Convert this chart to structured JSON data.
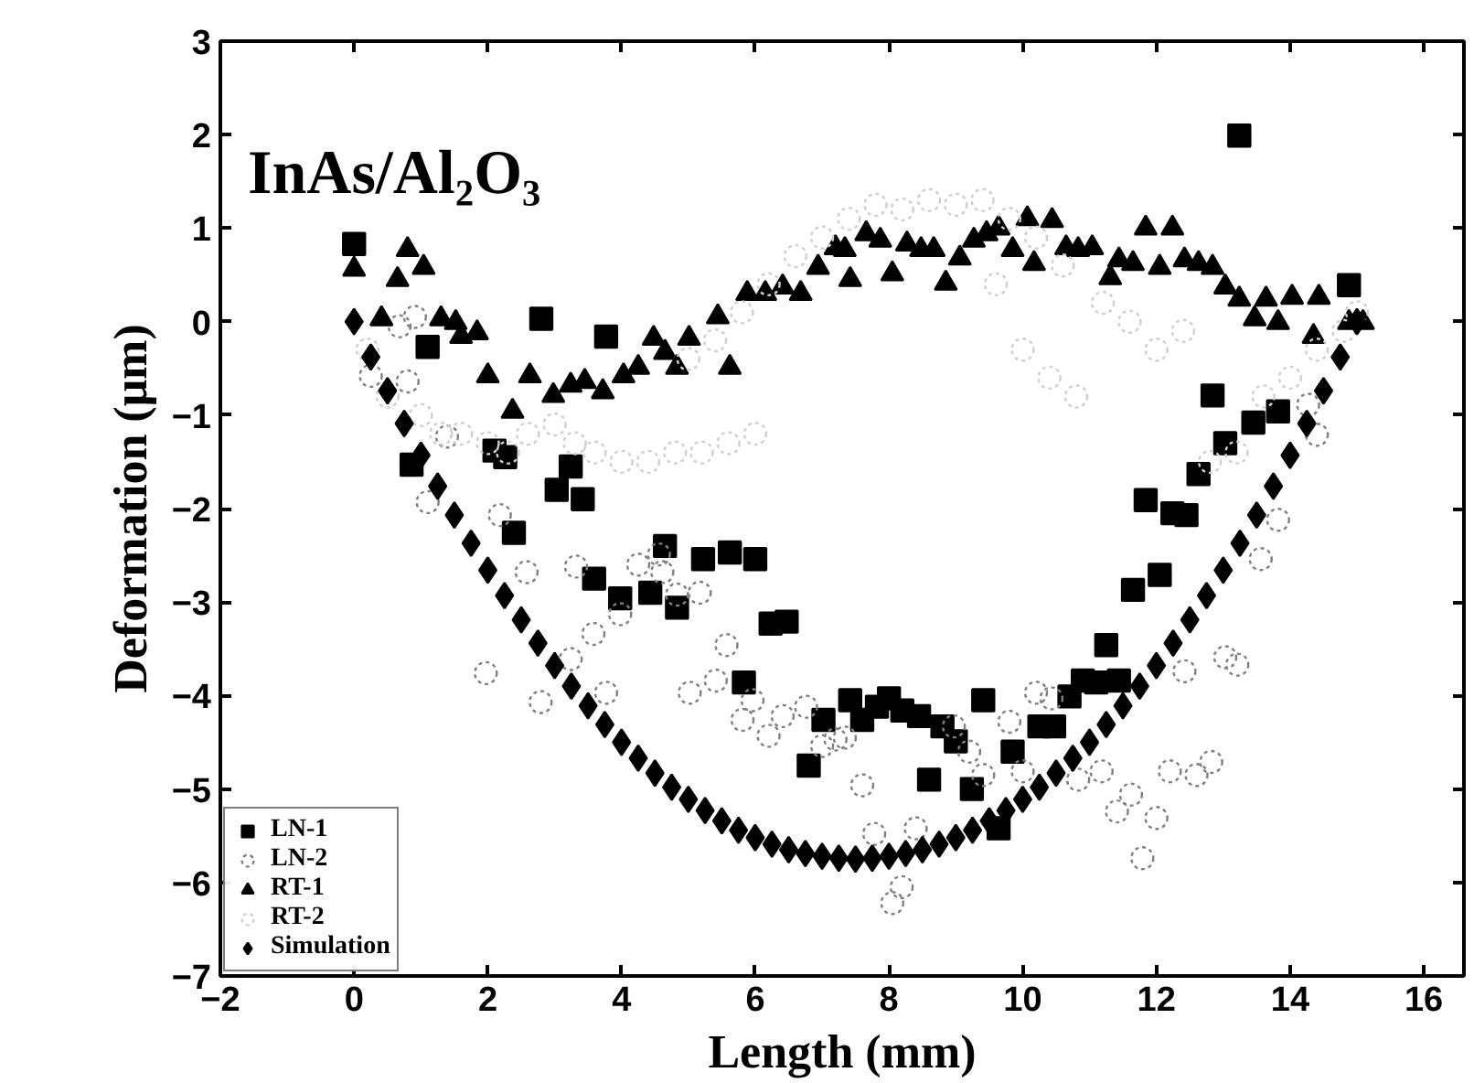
{
  "chart_data": {
    "type": "scatter",
    "xlabel": "Length (mm)",
    "ylabel": "Deformation (μm)",
    "annotations": [
      "InAs/Al₂O₃"
    ],
    "xlim": [
      -2,
      16.6
    ],
    "ylim": [
      -7,
      3
    ],
    "xticks": [
      -2,
      0,
      2,
      4,
      6,
      8,
      10,
      12,
      14,
      16
    ],
    "yticks": [
      -7,
      -6,
      -5,
      -4,
      -3,
      -2,
      -1,
      0,
      1,
      2,
      3
    ],
    "grid": false,
    "legend": "bottom left",
    "series": [
      {
        "name": "LN-1",
        "color": "#000000",
        "marker": "square",
        "x": [
          0,
          0.86,
          1.1,
          2.1,
          2.26,
          2.39,
          2.8,
          3.03,
          3.24,
          3.42,
          3.59,
          3.77,
          3.98,
          4.43,
          4.65,
          4.83,
          5.22,
          5.62,
          5.83,
          6.0,
          6.23,
          6.47,
          6.8,
          7.02,
          7.42,
          7.6,
          7.82,
          8.0,
          8.2,
          8.45,
          8.6,
          8.8,
          9.0,
          9.24,
          9.41,
          9.64,
          9.85,
          10.25,
          10.47,
          10.7,
          10.9,
          11.1,
          11.25,
          11.44,
          11.65,
          11.84,
          12.05,
          12.24,
          12.45,
          12.63,
          12.84,
          13.03,
          13.24,
          13.45,
          13.82,
          14.88
        ],
        "values": [
          0.83,
          -1.53,
          -0.27,
          -1.38,
          -1.45,
          -2.26,
          0.03,
          -1.8,
          -1.55,
          -1.9,
          -2.75,
          -0.16,
          -2.96,
          -2.9,
          -2.4,
          -3.06,
          -2.54,
          -2.47,
          -3.86,
          -2.54,
          -3.23,
          -3.21,
          -4.75,
          -4.26,
          -4.05,
          -4.26,
          -4.12,
          -4.03,
          -4.16,
          -4.22,
          -4.9,
          -4.33,
          -4.49,
          -5.0,
          -4.05,
          -5.42,
          -4.6,
          -4.33,
          -4.33,
          -4.01,
          -3.84,
          -3.86,
          -3.46,
          -3.84,
          -2.87,
          -1.91,
          -2.71,
          -2.05,
          -2.07,
          -1.63,
          -0.79,
          -1.3,
          1.99,
          -1.08,
          -0.96,
          0.39
        ]
      },
      {
        "name": "LN-2",
        "color": "#808080",
        "marker": "circle",
        "x": [
          0.25,
          0.68,
          0.8,
          0.91,
          1.1,
          1.39,
          1.97,
          2.18,
          2.58,
          2.79,
          3.24,
          3.32,
          3.58,
          3.77,
          3.98,
          4.25,
          4.56,
          4.61,
          4.83,
          5.02,
          5.17,
          5.41,
          5.57,
          5.81,
          5.96,
          6.2,
          6.41,
          6.76,
          7.0,
          7.2,
          7.34,
          7.6,
          7.78,
          8.05,
          8.19,
          8.4,
          8.97,
          9.2,
          9.41,
          9.8,
          10.0,
          10.2,
          10.43,
          10.83,
          11.18,
          11.41,
          11.62,
          11.79,
          12.0,
          12.2,
          12.42,
          12.6,
          12.82,
          13.03,
          13.21,
          13.56,
          13.82,
          14.27,
          14.4
        ],
        "values": [
          -0.58,
          -0.05,
          -0.64,
          0.05,
          -1.93,
          -1.23,
          -3.76,
          -2.07,
          -2.68,
          -4.07,
          -3.61,
          -2.62,
          -3.34,
          -3.97,
          -3.13,
          -2.6,
          -2.49,
          -2.68,
          -2.92,
          -3.97,
          -2.9,
          -3.84,
          -3.46,
          -4.26,
          -4.05,
          -4.43,
          -4.22,
          -4.12,
          -4.54,
          -4.47,
          -4.45,
          -4.96,
          -5.48,
          -6.22,
          -6.05,
          -5.42,
          -4.33,
          -4.6,
          -4.85,
          -4.28,
          -4.81,
          -3.97,
          -4.03,
          -4.9,
          -4.81,
          -5.24,
          -5.06,
          -5.74,
          -5.31,
          -4.81,
          -3.74,
          -4.85,
          -4.71,
          -3.59,
          -3.67,
          -2.54,
          -2.12,
          -0.89,
          -1.21
        ]
      },
      {
        "name": "RT-1",
        "color": "#000000",
        "marker": "triangle",
        "x": [
          0,
          0.41,
          0.65,
          0.8,
          1.04,
          1.3,
          1.52,
          1.6,
          1.84,
          2.0,
          2.37,
          2.63,
          2.98,
          3.24,
          3.45,
          3.72,
          4.03,
          4.25,
          4.48,
          4.65,
          4.83,
          5.01,
          5.44,
          5.62,
          5.88,
          6.15,
          6.41,
          6.68,
          6.94,
          7.2,
          7.34,
          7.42,
          7.66,
          7.87,
          8.05,
          8.27,
          8.48,
          8.67,
          8.85,
          9.06,
          9.27,
          9.46,
          9.64,
          9.85,
          10.07,
          10.17,
          10.44,
          10.65,
          10.83,
          11.04,
          11.31,
          11.44,
          11.65,
          11.84,
          12.05,
          12.24,
          12.42,
          12.63,
          12.84,
          13.03,
          13.24,
          13.47,
          13.64,
          13.82,
          14.03,
          14.35,
          14.43,
          14.88,
          15.09
        ],
        "values": [
          0.56,
          0.03,
          0.45,
          0.77,
          0.58,
          0.03,
          -0.01,
          -0.16,
          -0.12,
          -0.58,
          -0.96,
          -0.58,
          -0.79,
          -0.68,
          -0.64,
          -0.75,
          -0.58,
          -0.49,
          -0.18,
          -0.33,
          -0.49,
          -0.18,
          0.05,
          -0.49,
          0.3,
          0.3,
          0.37,
          0.3,
          0.58,
          0.79,
          0.77,
          0.45,
          0.94,
          0.87,
          0.51,
          0.83,
          0.77,
          0.77,
          0.41,
          0.68,
          0.87,
          0.94,
          1.0,
          0.77,
          1.1,
          0.62,
          1.08,
          0.79,
          0.77,
          0.79,
          0.47,
          0.66,
          0.62,
          1.0,
          0.58,
          1.0,
          0.66,
          0.62,
          0.58,
          0.37,
          0.24,
          0.03,
          0.24,
          -0.01,
          0.26,
          -0.16,
          0.26,
          -0.01,
          -0.01
        ]
      },
      {
        "name": "RT-2",
        "color": "#d0d0d0",
        "marker": "circle",
        "x": [
          0.2,
          0.5,
          1.0,
          1.3,
          1.6,
          2.0,
          2.3,
          2.6,
          3.0,
          3.3,
          3.6,
          4.0,
          4.4,
          4.8,
          5.0,
          5.2,
          5.4,
          5.6,
          5.8,
          6.0,
          6.2,
          6.6,
          7.0,
          7.4,
          7.8,
          8.2,
          8.6,
          9.0,
          9.4,
          9.6,
          9.8,
          10.0,
          10.2,
          10.4,
          10.6,
          10.8,
          11.2,
          11.6,
          12.0,
          12.4,
          12.8,
          13.2,
          13.6,
          14.0,
          14.4,
          14.8,
          15.0
        ],
        "values": [
          -0.3,
          -0.8,
          -1.0,
          -1.2,
          -1.2,
          -1.3,
          -1.4,
          -1.2,
          -1.1,
          -1.3,
          -1.4,
          -1.5,
          -1.5,
          -1.4,
          -0.4,
          -1.4,
          -0.2,
          -1.3,
          0.1,
          -1.2,
          0.4,
          0.7,
          0.9,
          1.1,
          1.25,
          1.2,
          1.3,
          1.25,
          1.3,
          0.4,
          1.1,
          -0.3,
          0.9,
          -0.6,
          0.6,
          -0.8,
          0.2,
          0.0,
          -0.3,
          -0.1,
          -1.5,
          -1.4,
          -0.8,
          -0.6,
          -0.3,
          -0.1,
          0.1
        ]
      },
      {
        "name": "Simulation",
        "color": "#000000",
        "marker": "diamond",
        "x": [
          0,
          0.25,
          0.5,
          0.75,
          1,
          1.25,
          1.5,
          1.75,
          2,
          2.25,
          2.5,
          2.75,
          3,
          3.25,
          3.5,
          3.75,
          4,
          4.25,
          4.5,
          4.75,
          5,
          5.25,
          5.5,
          5.75,
          6,
          6.25,
          6.5,
          6.75,
          7,
          7.25,
          7.5,
          7.75,
          8,
          8.25,
          8.5,
          8.75,
          9,
          9.25,
          9.5,
          9.75,
          10,
          10.25,
          10.5,
          10.75,
          11,
          11.25,
          11.5,
          11.75,
          12,
          12.25,
          12.5,
          12.75,
          13,
          13.25,
          13.5,
          13.75,
          14,
          14.25,
          14.5,
          14.75,
          15
        ],
        "values": [
          0.0,
          -0.38,
          -0.74,
          -1.09,
          -1.43,
          -1.76,
          -2.07,
          -2.37,
          -2.66,
          -2.93,
          -3.19,
          -3.44,
          -3.68,
          -3.9,
          -4.11,
          -4.31,
          -4.5,
          -4.67,
          -4.83,
          -4.98,
          -5.11,
          -5.23,
          -5.34,
          -5.44,
          -5.52,
          -5.59,
          -5.65,
          -5.69,
          -5.72,
          -5.74,
          -5.75,
          -5.74,
          -5.72,
          -5.69,
          -5.65,
          -5.59,
          -5.52,
          -5.44,
          -5.34,
          -5.23,
          -5.11,
          -4.98,
          -4.83,
          -4.67,
          -4.5,
          -4.31,
          -4.11,
          -3.9,
          -3.68,
          -3.44,
          -3.19,
          -2.93,
          -2.66,
          -2.37,
          -2.07,
          -1.76,
          -1.43,
          -1.09,
          -0.74,
          -0.38,
          0.0
        ]
      }
    ]
  }
}
